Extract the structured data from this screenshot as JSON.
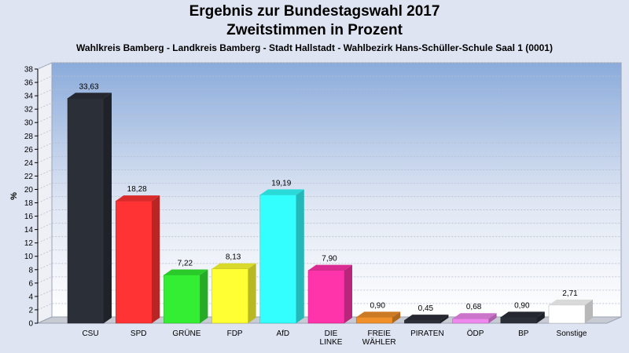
{
  "chart_data": {
    "type": "bar",
    "title": "Ergebnis zur Bundestagswahl 2017",
    "title2": "Zweitstimmen in Prozent",
    "subtitle": "Wahlkreis Bamberg - Landkreis Bamberg - Stadt Hallstadt - Wahlbezirk Hans-Schüller-Schule Saal 1 (0001)",
    "ylabel": "%",
    "ylim": [
      0,
      38
    ],
    "ytick_step": 2,
    "grid": true,
    "categories": [
      "CSU",
      "SPD",
      "GRÜNE",
      "FDP",
      "AfD",
      "DIE LINKE",
      "FREIE WÄHLER",
      "PIRATEN",
      "ÖDP",
      "BP",
      "Sonstige"
    ],
    "values": [
      33.63,
      18.28,
      7.22,
      8.13,
      19.19,
      7.9,
      0.9,
      0.45,
      0.68,
      0.9,
      2.71
    ],
    "value_labels": [
      "33,63",
      "18,28",
      "7,22",
      "8,13",
      "19,19",
      "7,90",
      "0,90",
      "0,45",
      "0,68",
      "0,90",
      "2,71"
    ],
    "colors": [
      "#2b2f38",
      "#ff3333",
      "#33ee33",
      "#ffff33",
      "#33ffff",
      "#ff33aa",
      "#f0902a",
      "#2b2f38",
      "#ee88ee",
      "#2b2f38",
      "#ffffff"
    ]
  }
}
